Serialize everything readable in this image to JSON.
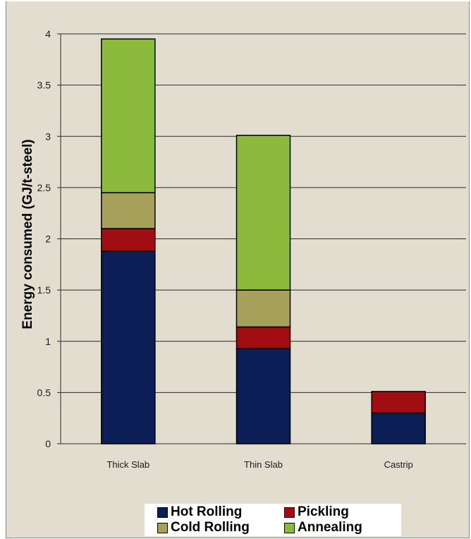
{
  "chart_data": {
    "type": "bar",
    "stacked": true,
    "categories": [
      "Thick Slab",
      "Thin Slab",
      "Castrip"
    ],
    "series": [
      {
        "name": "Hot Rolling",
        "color": "#0b1e55",
        "values": [
          1.88,
          0.93,
          0.3
        ]
      },
      {
        "name": "Pickling",
        "color": "#a00d12",
        "values": [
          0.22,
          0.21,
          0.21
        ]
      },
      {
        "name": "Cold Rolling",
        "color": "#a6a05a",
        "values": [
          0.35,
          0.36,
          0
        ]
      },
      {
        "name": "Annealing",
        "color": "#8cba3c",
        "values": [
          1.5,
          1.51,
          0
        ]
      }
    ],
    "legend_order": [
      "Hot Rolling",
      "Pickling",
      "Cold Rolling",
      "Annealing"
    ],
    "title": "",
    "xlabel": "",
    "ylabel": "Energy consumed (GJ/t-steel)",
    "ylim": [
      0,
      4
    ],
    "yticks": [
      "0",
      "0.5",
      "1",
      "1.5",
      "2",
      "2.5",
      "3",
      "3.5",
      "4"
    ],
    "grid": true,
    "legend_position": "bottom"
  }
}
